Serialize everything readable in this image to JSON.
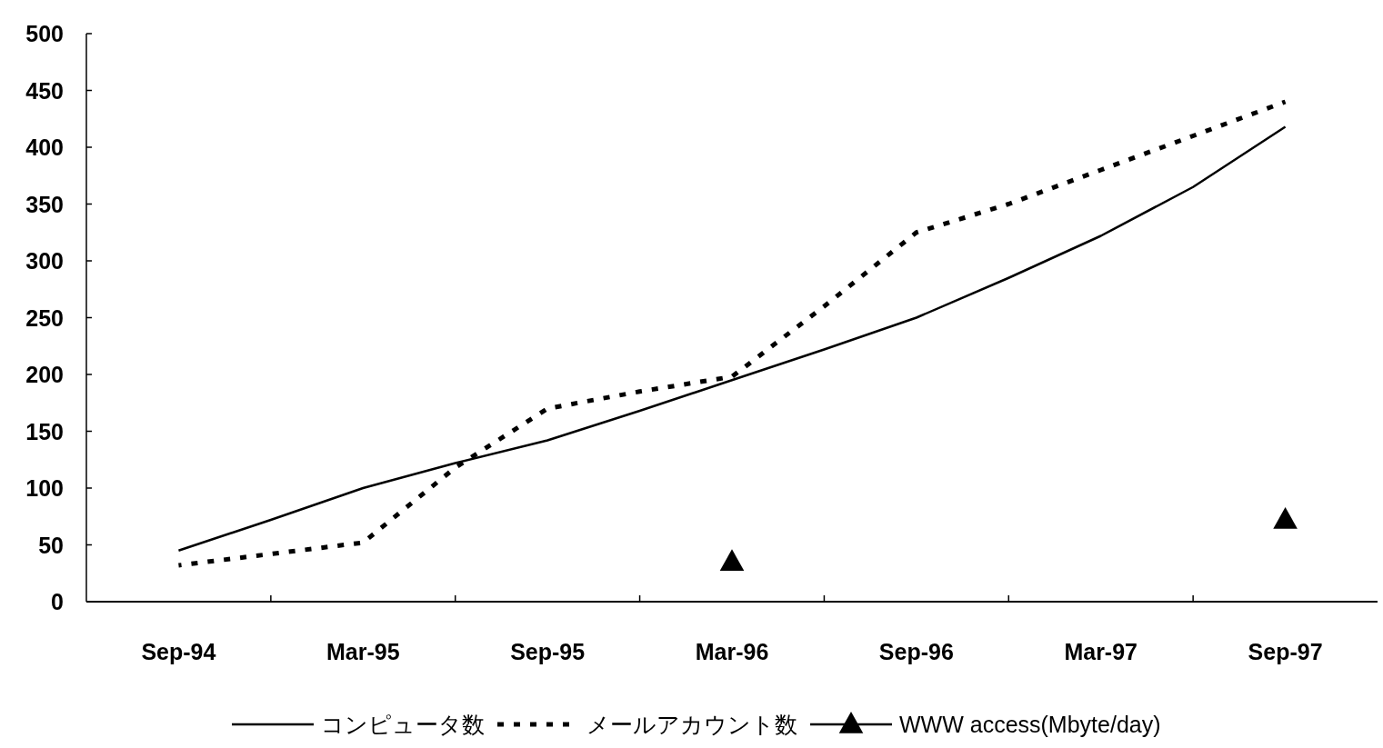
{
  "chart_data": {
    "type": "line",
    "categories": [
      "Sep-94",
      null,
      "Mar-95",
      null,
      "Sep-95",
      null,
      "Mar-96",
      null,
      "Sep-96",
      null,
      "Mar-97",
      null,
      "Sep-97"
    ],
    "series": [
      {
        "name": "コンピュータ数",
        "color": "#000000",
        "line_style": "solid",
        "marker": "none",
        "values": [
          45,
          72,
          100,
          122,
          142,
          168,
          195,
          222,
          250,
          285,
          322,
          365,
          418
        ]
      },
      {
        "name": "メールアカウント数",
        "color": "#000000",
        "line_style": "dotted",
        "marker": "none",
        "values": [
          32,
          42,
          52,
          118,
          170,
          185,
          198,
          260,
          325,
          350,
          380,
          410,
          440
        ]
      },
      {
        "name": "WWW access(Mbyte/day)",
        "color": "#000000",
        "line_style": "solid",
        "marker": "triangle",
        "values": [
          null,
          null,
          null,
          null,
          null,
          null,
          35,
          null,
          null,
          null,
          null,
          null,
          72
        ]
      }
    ],
    "ylim": [
      0,
      500
    ],
    "yticks": [
      0,
      50,
      100,
      150,
      200,
      250,
      300,
      350,
      400,
      450,
      500
    ],
    "grid": false,
    "legend": "bottom"
  }
}
